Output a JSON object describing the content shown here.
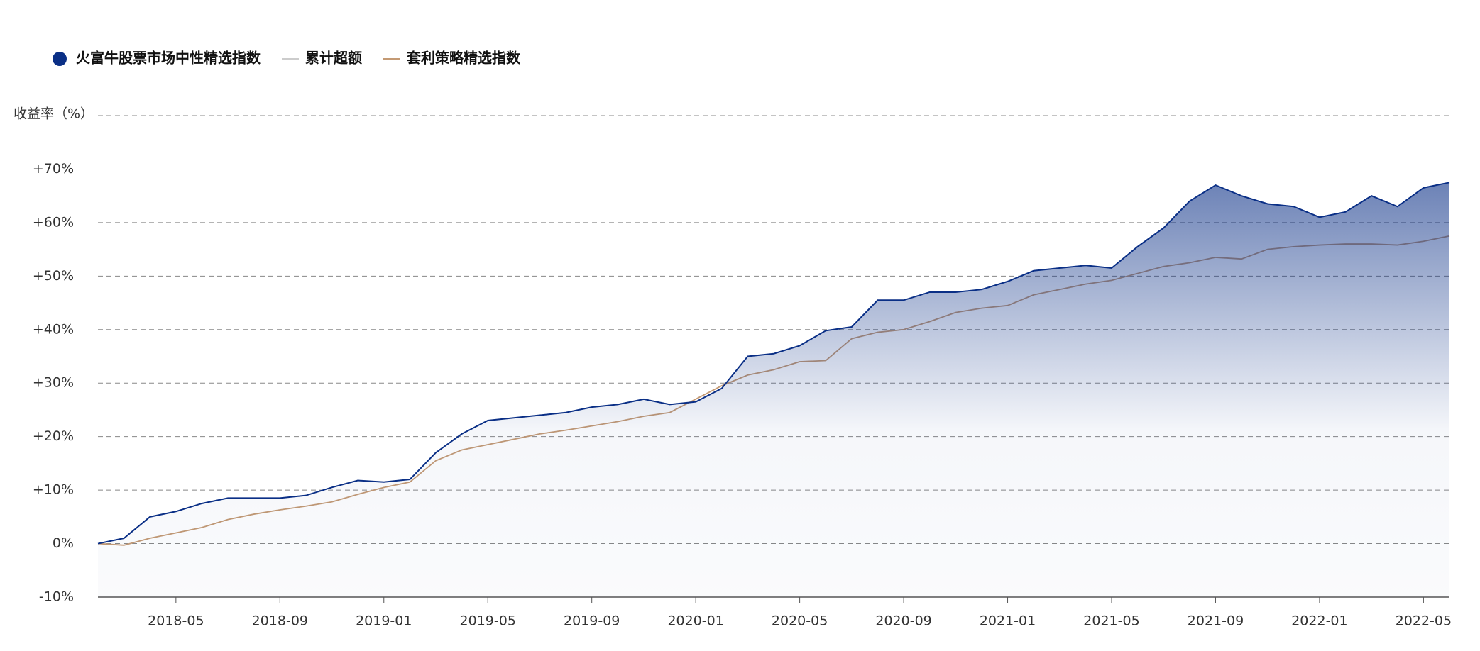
{
  "chart_data": {
    "type": "line",
    "y_axis_label": "收益率（%）",
    "categories": [
      null,
      null,
      null,
      "2018-05",
      null,
      null,
      null,
      "2018-09",
      null,
      null,
      null,
      "2019-01",
      null,
      null,
      null,
      "2019-05",
      null,
      null,
      null,
      "2019-09",
      null,
      null,
      null,
      "2020-01",
      null,
      null,
      null,
      "2020-05",
      null,
      null,
      null,
      "2020-09",
      null,
      null,
      null,
      "2021-01",
      null,
      null,
      null,
      "2021-05",
      null,
      null,
      null,
      "2021-09",
      null,
      null,
      null,
      "2022-01",
      null,
      null,
      null,
      "2022-05",
      null
    ],
    "series": [
      {
        "name": "火富牛股票市场中性精选指数",
        "color": "#0a2f86",
        "area": true,
        "values": [
          0,
          1,
          5,
          6,
          7.5,
          8.5,
          8.5,
          8.5,
          9,
          10.5,
          11.8,
          11.5,
          12,
          17,
          20.5,
          23,
          23.5,
          24,
          24.5,
          25.5,
          26,
          27,
          26,
          26.5,
          29,
          35,
          35.5,
          37,
          39.8,
          40.5,
          45.5,
          45.5,
          47,
          47,
          47.5,
          49,
          51,
          51.5,
          52,
          51.5,
          55.5,
          59,
          64,
          67,
          65,
          63.5,
          63,
          61,
          62,
          65,
          63,
          66.5,
          67.5
        ]
      },
      {
        "name": "累计超额",
        "color": "#cccccc",
        "values": [
          null,
          null,
          null,
          null,
          null,
          null,
          null,
          null,
          null,
          null,
          null,
          null,
          null,
          null,
          null,
          null,
          null,
          null,
          null,
          null,
          null,
          null,
          null,
          null,
          null,
          null,
          null,
          null,
          null,
          null,
          null,
          null,
          null,
          null,
          null,
          null,
          null,
          null,
          null,
          null,
          null,
          null,
          null,
          null,
          null,
          null,
          null,
          null,
          null,
          null,
          null,
          null,
          null
        ]
      },
      {
        "name": "套利策略精选指数",
        "color": "#c49a74",
        "values": [
          0,
          -0.3,
          1,
          2,
          3,
          4.5,
          5.5,
          6.3,
          7,
          7.8,
          9.2,
          10.5,
          11.5,
          15.5,
          17.5,
          18.5,
          19.5,
          20.5,
          21.2,
          22,
          22.8,
          23.8,
          24.5,
          27,
          29.5,
          31.5,
          32.5,
          34,
          34.2,
          38.3,
          39.5,
          40,
          41.5,
          43.2,
          44,
          44.5,
          46.5,
          47.5,
          48.5,
          49.2,
          50.5,
          51.8,
          52.5,
          53.5,
          53.2,
          55,
          55.5,
          55.8,
          56,
          56,
          55.8,
          56.5,
          57.5
        ]
      }
    ],
    "ylim": [
      -10,
      80
    ],
    "yticks": [
      {
        "value": -10,
        "label": "-10%"
      },
      {
        "value": 0,
        "label": "0%"
      },
      {
        "value": 10,
        "label": "+10%"
      },
      {
        "value": 20,
        "label": "+20%"
      },
      {
        "value": 30,
        "label": "+30%"
      },
      {
        "value": 40,
        "label": "+40%"
      },
      {
        "value": 50,
        "label": "+50%"
      },
      {
        "value": 60,
        "label": "+60%"
      },
      {
        "value": 70,
        "label": "+70%"
      }
    ],
    "grid": true
  }
}
